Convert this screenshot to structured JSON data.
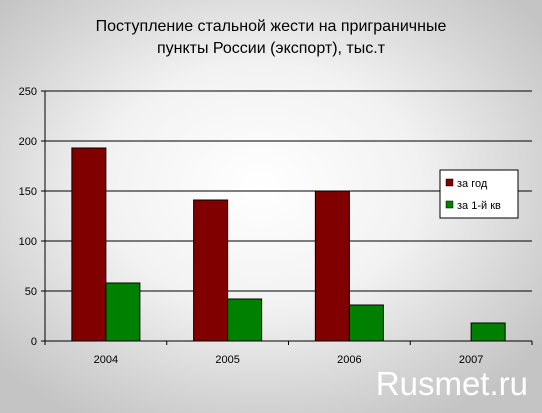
{
  "chart_data": {
    "type": "bar",
    "title_lines": [
      "Поступление стальной жести на приграничные",
      "пункты России (экспорт), тыс.т"
    ],
    "categories": [
      "2004",
      "2005",
      "2006",
      "2007"
    ],
    "series": [
      {
        "name": "за год",
        "values": [
          193,
          141,
          150,
          null
        ],
        "color": "#800000"
      },
      {
        "name": "за 1-й кв",
        "values": [
          58,
          42,
          36,
          18
        ],
        "color": "#008000"
      }
    ],
    "ylim": [
      0,
      250
    ],
    "yticks": [
      0,
      50,
      100,
      150,
      200,
      250
    ],
    "grid": true,
    "legend_position": "right"
  },
  "watermark": "Rusmet.ru"
}
